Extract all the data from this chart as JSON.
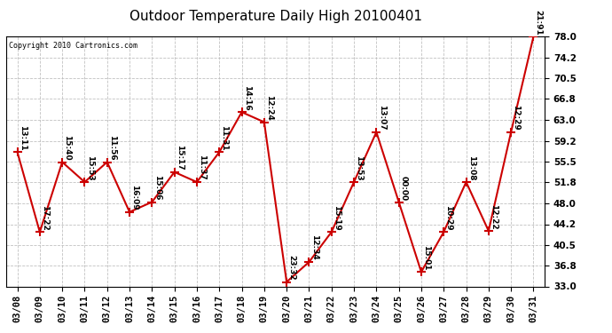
{
  "title": "Outdoor Temperature Daily High 20100401",
  "copyright_text": "Copyright 2010 Cartronics.com",
  "dates": [
    "03/08",
    "03/09",
    "03/10",
    "03/11",
    "03/12",
    "03/13",
    "03/14",
    "03/15",
    "03/16",
    "03/17",
    "03/18",
    "03/19",
    "03/20",
    "03/21",
    "03/22",
    "03/23",
    "03/24",
    "03/25",
    "03/26",
    "03/27",
    "03/28",
    "03/29",
    "03/30",
    "03/31"
  ],
  "temperatures": [
    57.2,
    42.8,
    55.4,
    51.8,
    55.4,
    46.4,
    48.2,
    53.6,
    51.8,
    57.2,
    64.4,
    62.6,
    33.8,
    37.4,
    42.8,
    51.8,
    60.8,
    48.2,
    35.6,
    42.8,
    51.8,
    43.0,
    60.8,
    78.0
  ],
  "labels": [
    "13:11",
    "17:22",
    "15:40",
    "15:53",
    "11:56",
    "16:09",
    "15:06",
    "15:17",
    "11:37",
    "11:31",
    "14:16",
    "12:24",
    "23:32",
    "12:34",
    "15:19",
    "13:53",
    "13:07",
    "00:00",
    "15:01",
    "10:29",
    "13:08",
    "12:22",
    "12:29",
    "21:91"
  ],
  "ylim_min": 33.0,
  "ylim_max": 78.0,
  "yticks": [
    33.0,
    36.8,
    40.5,
    44.2,
    48.0,
    51.8,
    55.5,
    59.2,
    63.0,
    66.8,
    70.5,
    74.2,
    78.0
  ],
  "line_color": "#cc0000",
  "marker_color": "#cc0000",
  "bg_color": "#ffffff",
  "grid_color": "#bbbbbb",
  "title_fontsize": 11,
  "label_fontsize": 6.5,
  "axis_fontsize": 7.5,
  "copyright_fontsize": 6
}
